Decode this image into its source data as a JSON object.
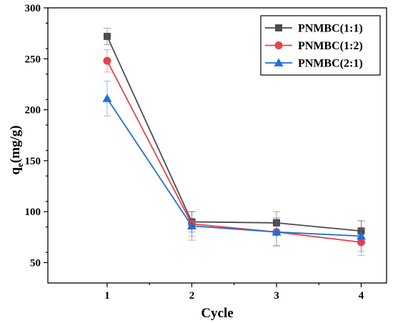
{
  "chart_data": {
    "type": "line",
    "title": "",
    "xlabel": "Cycle",
    "ylabel_main": "q",
    "ylabel_sub": "e",
    "ylabel_rest": "(mg/g)",
    "x": [
      1,
      2,
      3,
      4
    ],
    "xlim": [
      0.3,
      4.3
    ],
    "ylim": [
      30,
      300
    ],
    "yticks": [
      50,
      100,
      150,
      200,
      250,
      300
    ],
    "xticks": [
      1,
      2,
      3,
      4
    ],
    "legend_position": "top-right",
    "grid": false,
    "series": [
      {
        "name": "PNMBC(1:1)",
        "color": "#4d4d4d",
        "marker": "square",
        "values": [
          272,
          90,
          89,
          81
        ],
        "errors": [
          8,
          10,
          11,
          10
        ]
      },
      {
        "name": "PNMBC(1:2)",
        "color": "#e8414b",
        "marker": "circle",
        "values": [
          248,
          88,
          80,
          70
        ],
        "errors": [
          11,
          12,
          14,
          13
        ]
      },
      {
        "name": "PNMBC(2:1)",
        "color": "#1f6fd6",
        "marker": "triangle",
        "values": [
          211,
          86,
          80,
          76
        ],
        "errors": [
          17,
          14,
          13,
          15
        ]
      }
    ]
  }
}
